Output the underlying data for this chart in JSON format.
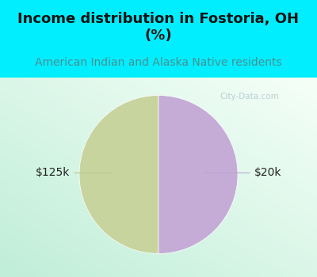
{
  "title": "Income distribution in Fostoria, OH\n(%)",
  "subtitle": "American Indian and Alaska Native residents",
  "slices": [
    50,
    50
  ],
  "labels": [
    "$125k",
    "$20k"
  ],
  "colors": [
    "#c8d49e",
    "#c4acd6"
  ],
  "bg_cyan": "#00eeff",
  "bg_chart_color1": "#c8eedd",
  "bg_chart_color2": "#f0f8f4",
  "title_color": "#111111",
  "subtitle_color": "#4a9090",
  "title_fontsize": 13,
  "subtitle_fontsize": 10,
  "label_fontsize": 10,
  "label_color": "#222222",
  "watermark": "City-Data.com",
  "watermark_color": "#b0c8cc",
  "line_color_left": "#b8c890",
  "line_color_right": "#b8a8d0"
}
